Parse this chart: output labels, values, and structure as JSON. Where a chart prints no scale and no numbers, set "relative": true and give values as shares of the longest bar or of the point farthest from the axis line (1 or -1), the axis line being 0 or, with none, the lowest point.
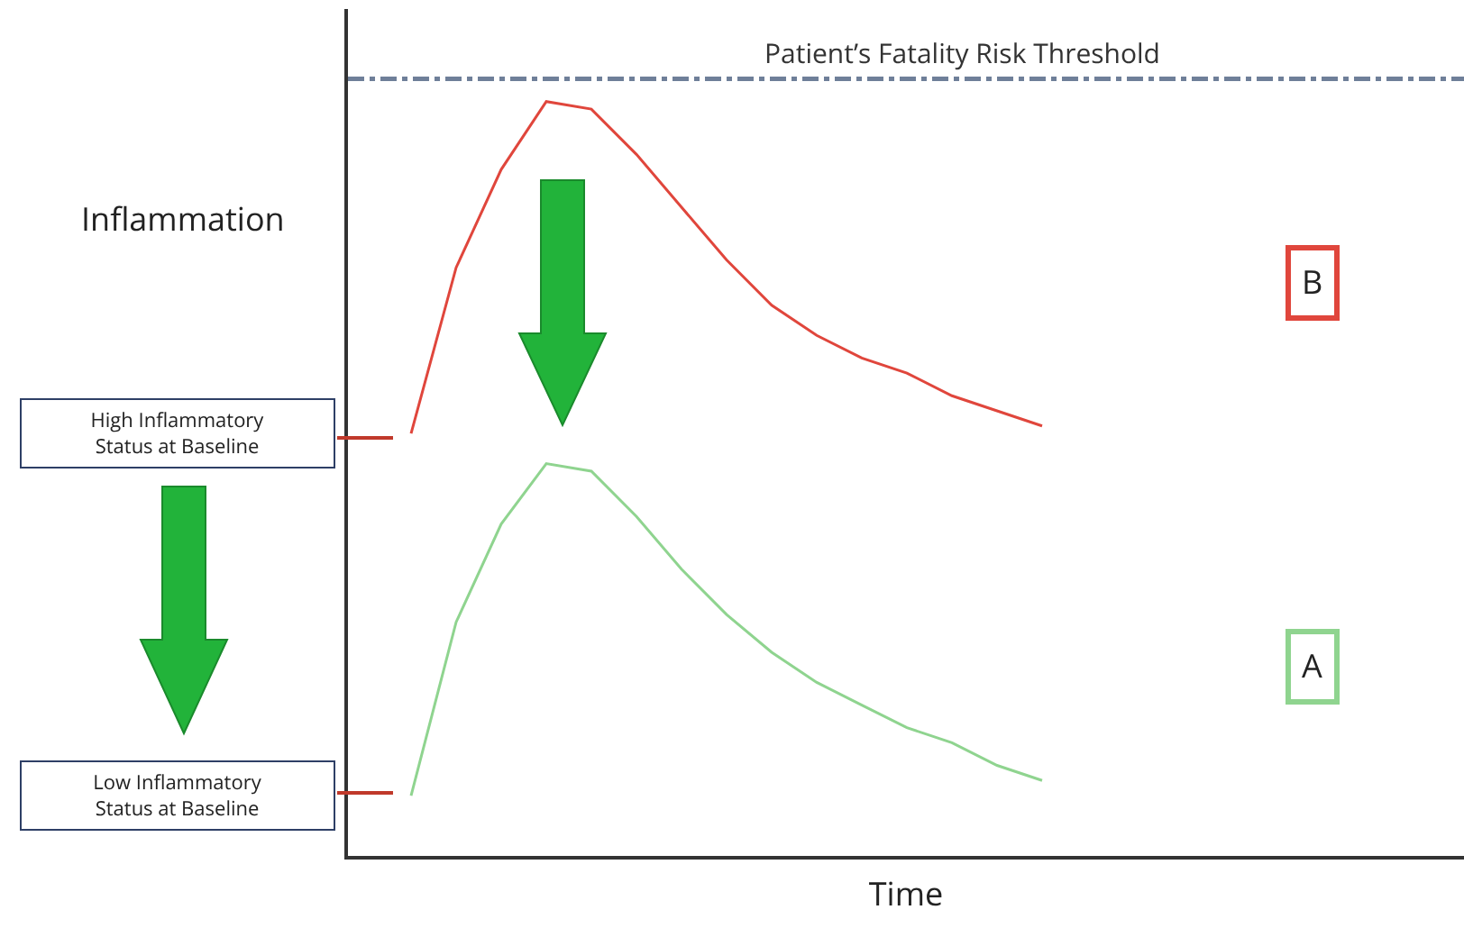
{
  "chart_data": {
    "type": "line",
    "relative": true,
    "xlabel": "Time",
    "categories": [
      null,
      null,
      null,
      null,
      null,
      null,
      null,
      null,
      null,
      null,
      null,
      null,
      null,
      null,
      null,
      null,
      null,
      null,
      null,
      null,
      null,
      null,
      null,
      null,
      null
    ],
    "series": [
      {
        "name": "B",
        "color": "#e0463c",
        "values": [
          null,
          0.56,
          0.78,
          0.91,
          1,
          0.99,
          0.93,
          0.86,
          0.79,
          0.73,
          0.69,
          0.66,
          0.64,
          0.61,
          0.59,
          0.57,
          null,
          null,
          null,
          null,
          null,
          null,
          null,
          null,
          null
        ]
      },
      {
        "name": "A",
        "color": "#8fd48f",
        "values": [
          null,
          0.08,
          0.31,
          0.44,
          0.52,
          0.51,
          0.45,
          0.38,
          0.32,
          0.27,
          0.23,
          0.2,
          0.17,
          0.15,
          0.12,
          0.1,
          null,
          null,
          null,
          null,
          null,
          null,
          null,
          null,
          null
        ]
      }
    ],
    "ref_lines": [
      {
        "axis": "y",
        "value": 1.03,
        "label": "Patient’s Fatality Risk Threshold",
        "color": "#6f7f99",
        "line_style": "dashed"
      }
    ],
    "annotations": [
      "Inflammation",
      "High Inflammatory\nStatus at Baseline",
      "Low Inflammatory\nStatus at Baseline"
    ],
    "legend": false,
    "marker": "none",
    "line_style": "solid"
  }
}
